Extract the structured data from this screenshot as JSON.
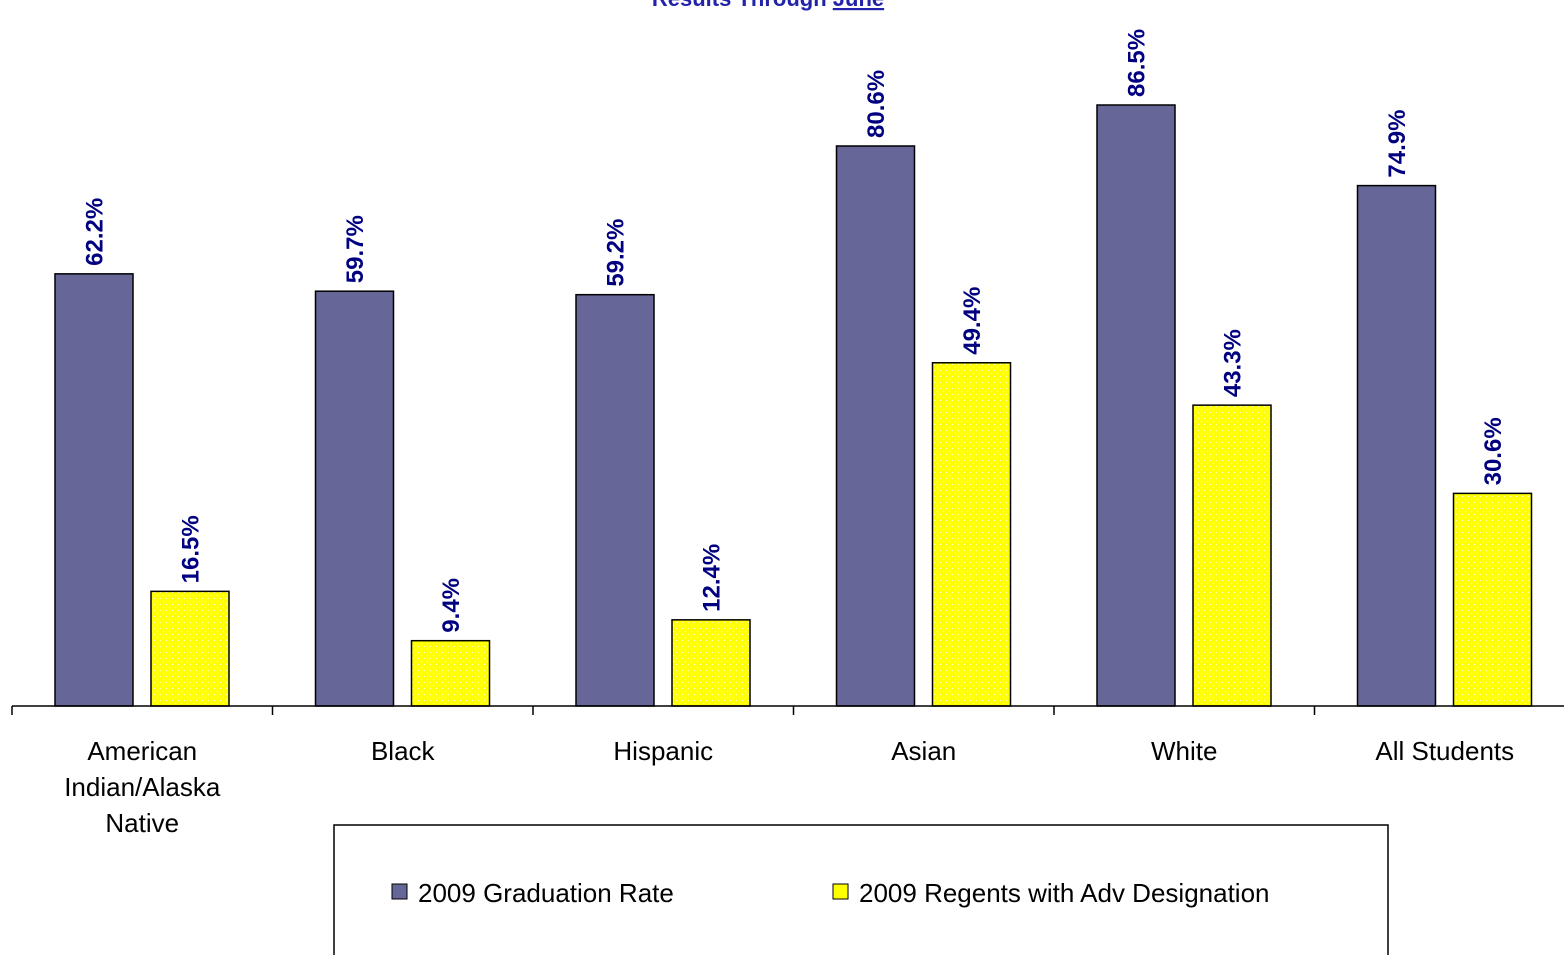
{
  "chart_data": {
    "type": "bar",
    "title_prefix": "Results Through ",
    "title_emphasis": "June",
    "categories": [
      [
        "American",
        "Indian/Alaska",
        "Native"
      ],
      [
        "Black"
      ],
      [
        "Hispanic"
      ],
      [
        "Asian"
      ],
      [
        "White"
      ],
      [
        "All Students"
      ]
    ],
    "series": [
      {
        "name": "2009 Graduation Rate",
        "color": "#666699",
        "values": [
          62.2,
          59.7,
          59.2,
          80.6,
          86.5,
          74.9
        ],
        "labels": [
          "62.2%",
          "59.7%",
          "59.2%",
          "80.6%",
          "86.5%",
          "74.9%"
        ]
      },
      {
        "name": "2009 Regents with Adv Designation",
        "color": "#ffff00",
        "values": [
          16.5,
          9.4,
          12.4,
          49.4,
          43.3,
          30.6
        ],
        "labels": [
          "16.5%",
          "9.4%",
          "12.4%",
          "49.4%",
          "43.3%",
          "30.6%"
        ]
      }
    ],
    "ylim": [
      0,
      100
    ],
    "grid": false,
    "legend_position": "bottom"
  }
}
